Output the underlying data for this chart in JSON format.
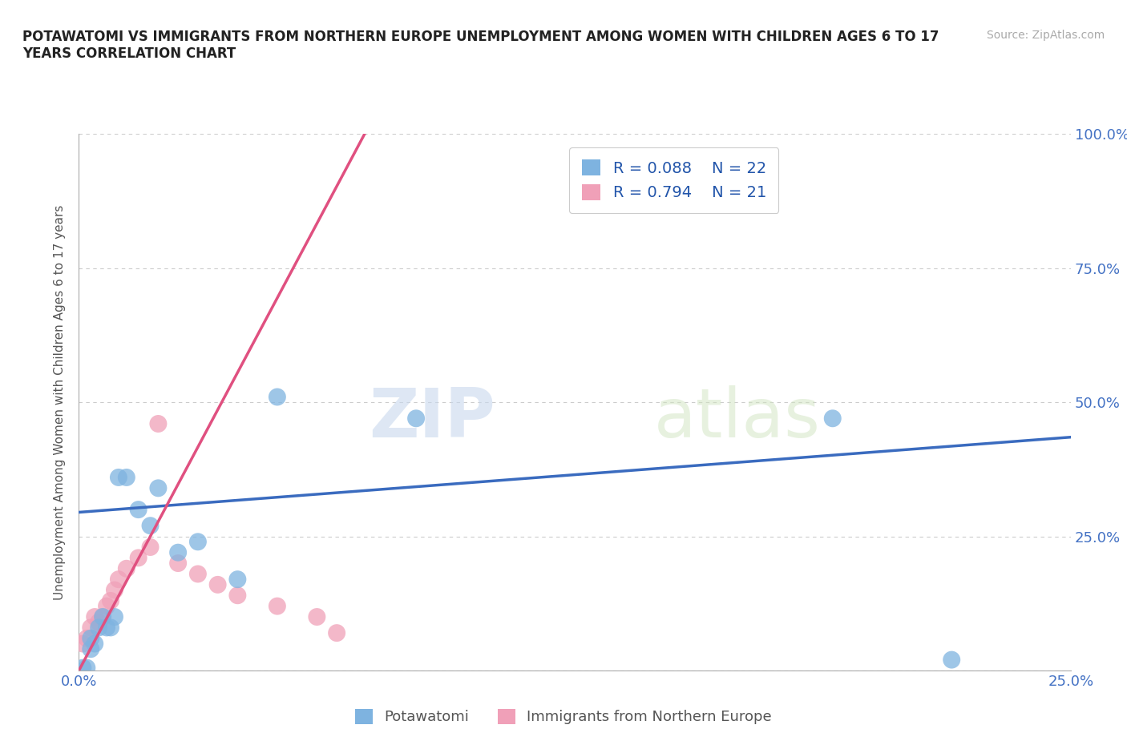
{
  "title": "POTAWATOMI VS IMMIGRANTS FROM NORTHERN EUROPE UNEMPLOYMENT AMONG WOMEN WITH CHILDREN AGES 6 TO 17\nYEARS CORRELATION CHART",
  "source_text": "Source: ZipAtlas.com",
  "ylabel": "Unemployment Among Women with Children Ages 6 to 17 years",
  "xlim": [
    0,
    0.25
  ],
  "ylim": [
    0,
    1.0
  ],
  "xticks": [
    0.0,
    0.05,
    0.1,
    0.15,
    0.2,
    0.25
  ],
  "yticks": [
    0.0,
    0.25,
    0.5,
    0.75,
    1.0
  ],
  "xticklabels": [
    "0.0%",
    "",
    "",
    "",
    "",
    "25.0%"
  ],
  "yticklabels_right": [
    "",
    "25.0%",
    "50.0%",
    "75.0%",
    "100.0%"
  ],
  "blue_scatter_x": [
    0.001,
    0.003,
    0.003,
    0.004,
    0.005,
    0.006,
    0.007,
    0.008,
    0.009,
    0.01,
    0.012,
    0.015,
    0.018,
    0.02,
    0.025,
    0.03,
    0.04,
    0.05,
    0.085,
    0.19,
    0.22,
    0.002
  ],
  "blue_scatter_y": [
    0.005,
    0.04,
    0.06,
    0.05,
    0.08,
    0.1,
    0.08,
    0.08,
    0.1,
    0.36,
    0.36,
    0.3,
    0.27,
    0.34,
    0.22,
    0.24,
    0.17,
    0.51,
    0.47,
    0.47,
    0.02,
    0.005
  ],
  "pink_scatter_x": [
    0.001,
    0.002,
    0.003,
    0.004,
    0.005,
    0.006,
    0.007,
    0.008,
    0.009,
    0.01,
    0.012,
    0.015,
    0.018,
    0.02,
    0.025,
    0.03,
    0.035,
    0.04,
    0.05,
    0.06,
    0.065
  ],
  "pink_scatter_y": [
    0.05,
    0.06,
    0.08,
    0.1,
    0.09,
    0.1,
    0.12,
    0.13,
    0.15,
    0.17,
    0.19,
    0.21,
    0.23,
    0.46,
    0.2,
    0.18,
    0.16,
    0.14,
    0.12,
    0.1,
    0.07
  ],
  "blue_line_x": [
    0.0,
    0.25
  ],
  "blue_line_y": [
    0.295,
    0.435
  ],
  "pink_line_x": [
    0.0,
    0.072
  ],
  "pink_line_y": [
    0.0,
    1.0
  ],
  "blue_color": "#7eb3e0",
  "blue_line_color": "#3a6bbf",
  "pink_color": "#f0a0b8",
  "pink_line_color": "#e05080",
  "R_blue": "0.088",
  "N_blue": "22",
  "R_pink": "0.794",
  "N_pink": "21",
  "legend_label_blue": "Potawatomi",
  "legend_label_pink": "Immigrants from Northern Europe",
  "watermark_zip": "ZIP",
  "watermark_atlas": "atlas",
  "background_color": "#ffffff",
  "grid_color": "#cccccc"
}
